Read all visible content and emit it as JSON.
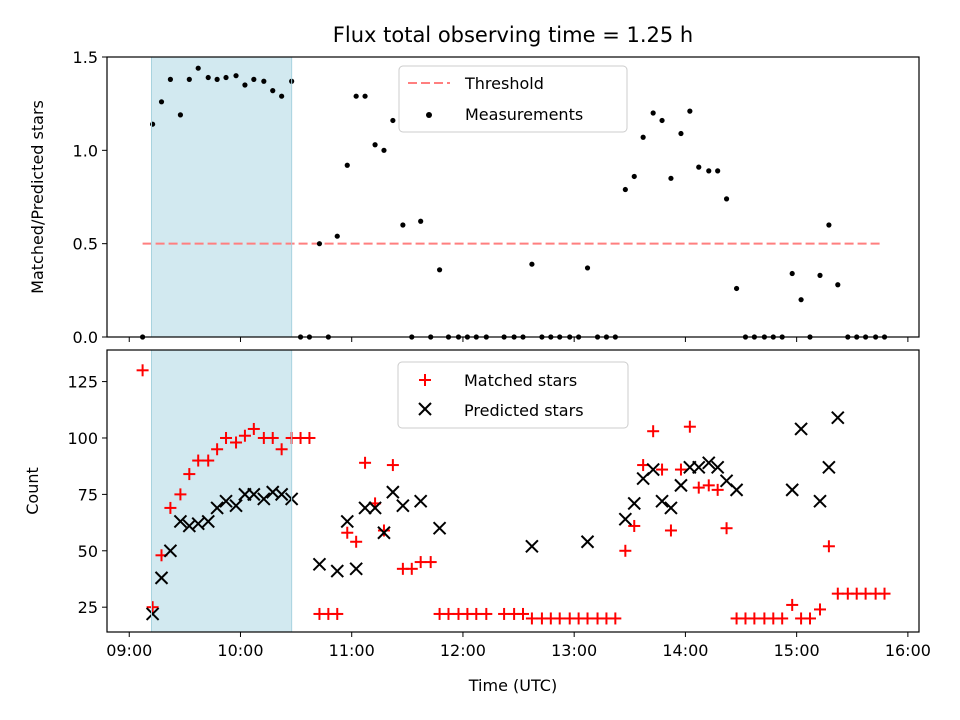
{
  "chart_data": [
    {
      "type": "scatter",
      "title": "Flux total observing time = 1.25 h",
      "xlabel": "",
      "ylabel": "Matched/Predicted stars",
      "xlim_hours": [
        8.8,
        16.1
      ],
      "ylim": [
        0,
        1.5
      ],
      "yticks": [
        0.0,
        0.5,
        1.0,
        1.5
      ],
      "ytick_labels": [
        "0.0",
        "0.5",
        "1.0",
        "1.5"
      ],
      "shaded_span_hours": [
        9.2,
        10.46
      ],
      "shade_color": "#d2e9f0",
      "legend": {
        "placement": "top-center",
        "entries": [
          {
            "label": "Threshold",
            "marker": "dashed-line",
            "color": "#ff7f7f"
          },
          {
            "label": "Measurements",
            "marker": "dot",
            "color": "#000000"
          }
        ]
      },
      "threshold": {
        "name": "Threshold",
        "value": 0.5,
        "x_range_hours": [
          9.12,
          15.78
        ]
      },
      "series": [
        {
          "name": "Measurements",
          "color": "#000000",
          "points": [
            [
              9.12,
              0.0
            ],
            [
              9.21,
              1.14
            ],
            [
              9.29,
              1.26
            ],
            [
              9.37,
              1.38
            ],
            [
              9.46,
              1.19
            ],
            [
              9.54,
              1.38
            ],
            [
              9.62,
              1.44
            ],
            [
              9.71,
              1.39
            ],
            [
              9.79,
              1.38
            ],
            [
              9.87,
              1.39
            ],
            [
              9.96,
              1.4
            ],
            [
              10.04,
              1.35
            ],
            [
              10.12,
              1.38
            ],
            [
              10.21,
              1.37
            ],
            [
              10.29,
              1.32
            ],
            [
              10.37,
              1.29
            ],
            [
              10.46,
              1.37
            ],
            [
              10.54,
              0.0
            ],
            [
              10.62,
              0.0
            ],
            [
              10.71,
              0.5
            ],
            [
              10.79,
              0.0
            ],
            [
              10.87,
              0.54
            ],
            [
              10.96,
              0.92
            ],
            [
              11.04,
              1.29
            ],
            [
              11.12,
              1.29
            ],
            [
              11.21,
              1.03
            ],
            [
              11.29,
              1.0
            ],
            [
              11.37,
              1.16
            ],
            [
              11.46,
              0.6
            ],
            [
              11.54,
              0.0
            ],
            [
              11.62,
              0.62
            ],
            [
              11.71,
              0.0
            ],
            [
              11.79,
              0.36
            ],
            [
              11.87,
              0.0
            ],
            [
              11.96,
              0.0
            ],
            [
              12.04,
              0.0
            ],
            [
              12.12,
              0.0
            ],
            [
              12.21,
              0.0
            ],
            [
              12.37,
              0.0
            ],
            [
              12.46,
              0.0
            ],
            [
              12.54,
              0.0
            ],
            [
              12.62,
              0.39
            ],
            [
              12.71,
              0.0
            ],
            [
              12.79,
              0.0
            ],
            [
              12.87,
              0.0
            ],
            [
              12.96,
              0.0
            ],
            [
              13.04,
              0.0
            ],
            [
              13.12,
              0.37
            ],
            [
              13.21,
              0.0
            ],
            [
              13.29,
              0.0
            ],
            [
              13.37,
              0.0
            ],
            [
              13.46,
              0.79
            ],
            [
              13.54,
              0.86
            ],
            [
              13.62,
              1.07
            ],
            [
              13.71,
              1.2
            ],
            [
              13.79,
              1.16
            ],
            [
              13.87,
              0.85
            ],
            [
              13.96,
              1.09
            ],
            [
              14.04,
              1.21
            ],
            [
              14.12,
              0.91
            ],
            [
              14.21,
              0.89
            ],
            [
              14.29,
              0.89
            ],
            [
              14.37,
              0.74
            ],
            [
              14.46,
              0.26
            ],
            [
              14.54,
              0.0
            ],
            [
              14.62,
              0.0
            ],
            [
              14.71,
              0.0
            ],
            [
              14.79,
              0.0
            ],
            [
              14.87,
              0.0
            ],
            [
              14.96,
              0.34
            ],
            [
              15.04,
              0.2
            ],
            [
              15.12,
              0.0
            ],
            [
              15.21,
              0.33
            ],
            [
              15.29,
              0.6
            ],
            [
              15.37,
              0.28
            ],
            [
              15.46,
              0.0
            ],
            [
              15.54,
              0.0
            ],
            [
              15.62,
              0.0
            ],
            [
              15.71,
              0.0
            ],
            [
              15.79,
              0.0
            ]
          ]
        }
      ]
    },
    {
      "type": "scatter",
      "title": "",
      "xlabel": "Time (UTC)",
      "ylabel": "Count",
      "xlim_hours": [
        8.8,
        16.1
      ],
      "ylim": [
        14,
        139
      ],
      "yticks": [
        25,
        50,
        75,
        100,
        125
      ],
      "ytick_labels": [
        "25",
        "50",
        "75",
        "100",
        "125"
      ],
      "xticks_hours": [
        9,
        10,
        11,
        12,
        13,
        14,
        15,
        16
      ],
      "xtick_labels": [
        "09:00",
        "10:00",
        "11:00",
        "12:00",
        "13:00",
        "14:00",
        "15:00",
        "16:00"
      ],
      "shaded_span_hours": [
        9.2,
        10.46
      ],
      "shade_color": "#d2e9f0",
      "legend": {
        "placement": "top-center",
        "entries": [
          {
            "label": "Matched stars",
            "marker": "plus",
            "color": "#ff0000"
          },
          {
            "label": "Predicted stars",
            "marker": "x",
            "color": "#000000"
          }
        ]
      },
      "series": [
        {
          "name": "Matched stars",
          "marker": "plus",
          "color": "#ff0000",
          "points": [
            [
              9.12,
              130
            ],
            [
              9.21,
              25
            ],
            [
              9.29,
              48
            ],
            [
              9.37,
              69
            ],
            [
              9.46,
              75
            ],
            [
              9.54,
              84
            ],
            [
              9.62,
              90
            ],
            [
              9.71,
              90
            ],
            [
              9.79,
              95
            ],
            [
              9.87,
              100
            ],
            [
              9.96,
              98
            ],
            [
              10.04,
              101
            ],
            [
              10.12,
              104
            ],
            [
              10.21,
              100
            ],
            [
              10.29,
              100
            ],
            [
              10.37,
              95
            ],
            [
              10.46,
              100
            ],
            [
              10.54,
              100
            ],
            [
              10.62,
              100
            ],
            [
              10.71,
              22
            ],
            [
              10.79,
              22
            ],
            [
              10.87,
              22
            ],
            [
              10.96,
              58
            ],
            [
              11.04,
              54
            ],
            [
              11.12,
              89
            ],
            [
              11.21,
              71
            ],
            [
              11.29,
              59
            ],
            [
              11.37,
              88
            ],
            [
              11.46,
              42
            ],
            [
              11.54,
              42
            ],
            [
              11.62,
              45
            ],
            [
              11.71,
              45
            ],
            [
              11.79,
              22
            ],
            [
              11.87,
              22
            ],
            [
              11.96,
              22
            ],
            [
              12.04,
              22
            ],
            [
              12.12,
              22
            ],
            [
              12.21,
              22
            ],
            [
              12.37,
              22
            ],
            [
              12.46,
              22
            ],
            [
              12.54,
              22
            ],
            [
              12.62,
              20
            ],
            [
              12.71,
              20
            ],
            [
              12.79,
              20
            ],
            [
              12.87,
              20
            ],
            [
              12.96,
              20
            ],
            [
              13.04,
              20
            ],
            [
              13.12,
              20
            ],
            [
              13.21,
              20
            ],
            [
              13.29,
              20
            ],
            [
              13.37,
              20
            ],
            [
              13.46,
              50
            ],
            [
              13.54,
              61
            ],
            [
              13.62,
              88
            ],
            [
              13.71,
              103
            ],
            [
              13.79,
              86
            ],
            [
              13.87,
              59
            ],
            [
              13.96,
              86
            ],
            [
              14.04,
              105
            ],
            [
              14.12,
              78
            ],
            [
              14.21,
              79
            ],
            [
              14.29,
              77
            ],
            [
              14.37,
              60
            ],
            [
              14.46,
              20
            ],
            [
              14.54,
              20
            ],
            [
              14.62,
              20
            ],
            [
              14.71,
              20
            ],
            [
              14.79,
              20
            ],
            [
              14.87,
              20
            ],
            [
              14.96,
              26
            ],
            [
              15.04,
              20
            ],
            [
              15.12,
              20
            ],
            [
              15.21,
              24
            ],
            [
              15.29,
              52
            ],
            [
              15.37,
              31
            ],
            [
              15.46,
              31
            ],
            [
              15.54,
              31
            ],
            [
              15.62,
              31
            ],
            [
              15.71,
              31
            ],
            [
              15.79,
              31
            ]
          ]
        },
        {
          "name": "Predicted stars",
          "marker": "x",
          "color": "#000000",
          "points": [
            [
              9.21,
              22
            ],
            [
              9.29,
              38
            ],
            [
              9.37,
              50
            ],
            [
              9.46,
              63
            ],
            [
              9.54,
              61
            ],
            [
              9.62,
              62
            ],
            [
              9.71,
              63
            ],
            [
              9.79,
              69
            ],
            [
              9.87,
              72
            ],
            [
              9.96,
              70
            ],
            [
              10.04,
              75
            ],
            [
              10.12,
              75
            ],
            [
              10.21,
              73
            ],
            [
              10.29,
              76
            ],
            [
              10.37,
              75
            ],
            [
              10.46,
              73
            ],
            [
              10.71,
              44
            ],
            [
              10.87,
              41
            ],
            [
              10.96,
              63
            ],
            [
              11.04,
              42
            ],
            [
              11.12,
              69
            ],
            [
              11.21,
              69
            ],
            [
              11.29,
              58
            ],
            [
              11.37,
              76
            ],
            [
              11.46,
              70
            ],
            [
              11.62,
              72
            ],
            [
              11.79,
              60
            ],
            [
              12.62,
              52
            ],
            [
              13.12,
              54
            ],
            [
              13.46,
              64
            ],
            [
              13.54,
              71
            ],
            [
              13.62,
              82
            ],
            [
              13.71,
              86
            ],
            [
              13.79,
              72
            ],
            [
              13.87,
              69
            ],
            [
              13.96,
              79
            ],
            [
              14.04,
              87
            ],
            [
              14.12,
              87
            ],
            [
              14.21,
              89
            ],
            [
              14.29,
              87
            ],
            [
              14.37,
              81
            ],
            [
              14.46,
              77
            ],
            [
              14.96,
              77
            ],
            [
              15.04,
              104
            ],
            [
              15.21,
              72
            ],
            [
              15.29,
              87
            ],
            [
              15.37,
              109
            ]
          ]
        }
      ]
    }
  ]
}
